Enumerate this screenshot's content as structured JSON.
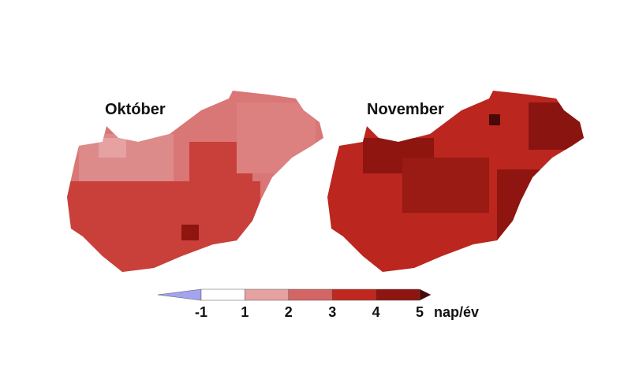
{
  "maps": [
    {
      "title": "Október"
    },
    {
      "title": "November"
    }
  ],
  "legend": {
    "ticks": [
      -1,
      1,
      2,
      3,
      4,
      5
    ],
    "unit": "nap/év",
    "colors": [
      "#a3a3ef",
      "#ffffff",
      "#e6a1a1",
      "#d36565",
      "#c0281f",
      "#8e1510",
      "#4a0808"
    ]
  }
}
